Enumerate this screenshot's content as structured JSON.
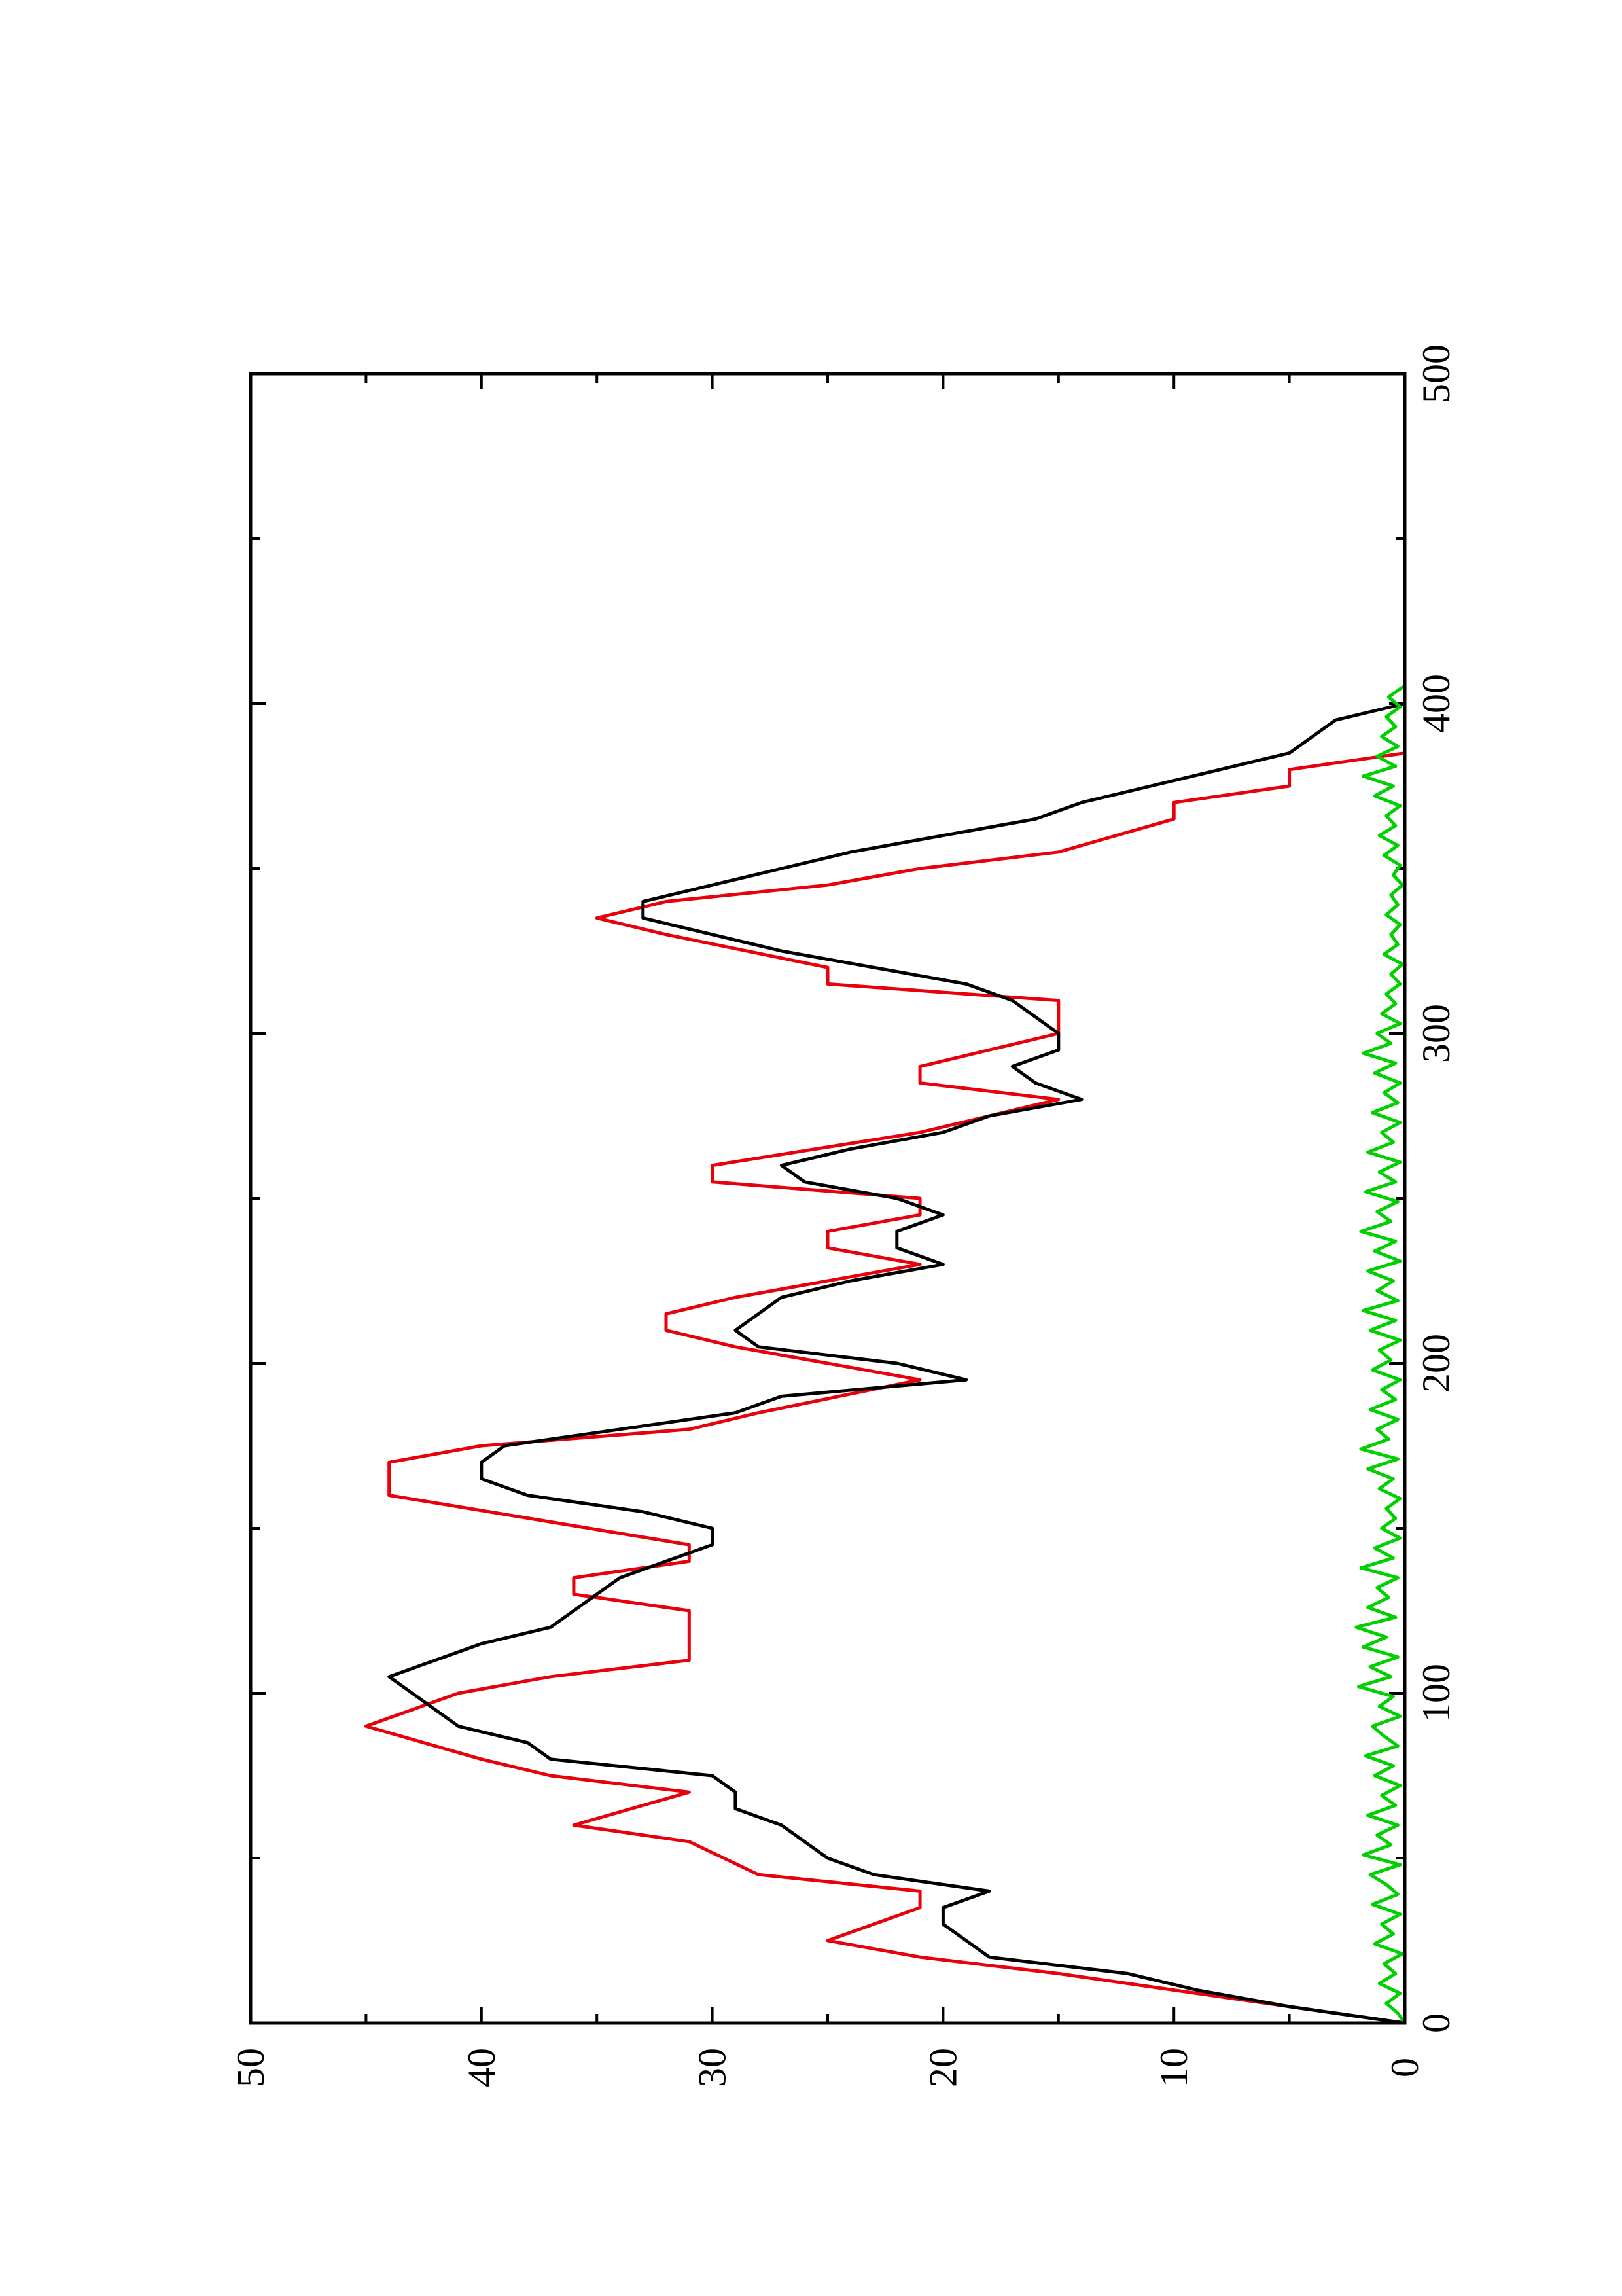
{
  "chart_data": {
    "type": "line",
    "rotated": "90 degrees counter-clockwise (x axis runs vertically, y axis runs horizontally)",
    "xlim": [
      0,
      500
    ],
    "ylim": [
      0,
      50
    ],
    "x_ticks": [
      0,
      100,
      200,
      300,
      400,
      500
    ],
    "y_ticks": [
      0,
      10,
      20,
      30,
      40,
      50
    ],
    "x_tick_labels": [
      "0",
      "100",
      "200",
      "300",
      "400",
      "500"
    ],
    "y_tick_labels": [
      "0",
      "10",
      "20",
      "30",
      "40",
      "50"
    ],
    "x_minor_ticks": [
      50,
      150,
      250,
      350,
      450
    ],
    "grid": false,
    "legend": "none",
    "series": [
      {
        "color": "#e8000b",
        "points": [
          [
            0,
            0
          ],
          [
            15,
            15
          ],
          [
            20,
            21
          ],
          [
            25,
            25
          ],
          [
            35,
            21
          ],
          [
            40,
            21
          ],
          [
            45,
            28
          ],
          [
            55,
            31
          ],
          [
            60,
            36
          ],
          [
            70,
            31
          ],
          [
            75,
            37
          ],
          [
            80,
            40
          ],
          [
            90,
            45
          ],
          [
            100,
            41
          ],
          [
            105,
            37
          ],
          [
            110,
            31
          ],
          [
            125,
            31
          ],
          [
            130,
            36
          ],
          [
            135,
            36
          ],
          [
            140,
            31
          ],
          [
            145,
            31
          ],
          [
            160,
            44
          ],
          [
            170,
            44
          ],
          [
            175,
            40
          ],
          [
            180,
            31
          ],
          [
            185,
            28
          ],
          [
            195,
            21
          ],
          [
            205,
            29
          ],
          [
            210,
            32
          ],
          [
            215,
            32
          ],
          [
            220,
            29
          ],
          [
            230,
            21
          ],
          [
            235,
            25
          ],
          [
            240,
            25
          ],
          [
            245,
            21
          ],
          [
            250,
            21
          ],
          [
            255,
            30
          ],
          [
            260,
            30
          ],
          [
            270,
            21
          ],
          [
            280,
            15
          ],
          [
            285,
            21
          ],
          [
            290,
            21
          ],
          [
            300,
            15
          ],
          [
            310,
            15
          ],
          [
            315,
            25
          ],
          [
            320,
            25
          ],
          [
            330,
            32
          ],
          [
            335,
            35
          ],
          [
            340,
            32
          ],
          [
            345,
            25
          ],
          [
            350,
            21
          ],
          [
            355,
            15
          ],
          [
            365,
            10
          ],
          [
            370,
            10
          ],
          [
            375,
            5
          ],
          [
            380,
            5
          ],
          [
            385,
            0
          ]
        ]
      },
      {
        "color": "#000000",
        "points": [
          [
            0,
            0
          ],
          [
            5,
            5
          ],
          [
            10,
            9
          ],
          [
            15,
            12
          ],
          [
            20,
            18
          ],
          [
            25,
            19
          ],
          [
            30,
            20
          ],
          [
            35,
            20
          ],
          [
            40,
            18
          ],
          [
            45,
            23
          ],
          [
            50,
            25
          ],
          [
            55,
            26
          ],
          [
            60,
            27
          ],
          [
            65,
            29
          ],
          [
            70,
            29
          ],
          [
            75,
            30
          ],
          [
            80,
            37
          ],
          [
            85,
            38
          ],
          [
            90,
            41
          ],
          [
            95,
            42
          ],
          [
            100,
            43
          ],
          [
            105,
            44
          ],
          [
            110,
            42
          ],
          [
            115,
            40
          ],
          [
            120,
            37
          ],
          [
            125,
            36
          ],
          [
            130,
            35
          ],
          [
            135,
            34
          ],
          [
            140,
            32
          ],
          [
            145,
            30
          ],
          [
            150,
            30
          ],
          [
            155,
            33
          ],
          [
            160,
            38
          ],
          [
            165,
            40
          ],
          [
            170,
            40
          ],
          [
            175,
            39
          ],
          [
            180,
            34
          ],
          [
            185,
            29
          ],
          [
            190,
            27
          ],
          [
            195,
            19
          ],
          [
            200,
            22
          ],
          [
            205,
            28
          ],
          [
            210,
            29
          ],
          [
            215,
            28
          ],
          [
            220,
            27
          ],
          [
            225,
            24
          ],
          [
            230,
            20
          ],
          [
            235,
            22
          ],
          [
            240,
            22
          ],
          [
            245,
            20
          ],
          [
            250,
            22
          ],
          [
            255,
            26
          ],
          [
            260,
            27
          ],
          [
            265,
            24
          ],
          [
            270,
            20
          ],
          [
            275,
            18
          ],
          [
            280,
            14
          ],
          [
            285,
            16
          ],
          [
            290,
            17
          ],
          [
            295,
            15
          ],
          [
            300,
            15
          ],
          [
            305,
            16
          ],
          [
            310,
            17
          ],
          [
            315,
            19
          ],
          [
            320,
            23
          ],
          [
            325,
            27
          ],
          [
            330,
            30
          ],
          [
            335,
            33
          ],
          [
            340,
            33
          ],
          [
            345,
            30
          ],
          [
            350,
            27
          ],
          [
            355,
            24
          ],
          [
            360,
            20
          ],
          [
            365,
            16
          ],
          [
            370,
            14
          ],
          [
            375,
            11
          ],
          [
            380,
            8
          ],
          [
            385,
            5
          ],
          [
            390,
            4
          ],
          [
            395,
            3
          ],
          [
            400,
            0
          ]
        ]
      },
      {
        "color": "#00d000",
        "points": [
          [
            0,
            0
          ],
          [
            3,
            0.3
          ],
          [
            6,
            0.8
          ],
          [
            9,
            0.2
          ],
          [
            12,
            1.1
          ],
          [
            15,
            0.4
          ],
          [
            18,
            0.9
          ],
          [
            21,
            0.1
          ],
          [
            24,
            1.3
          ],
          [
            27,
            0.5
          ],
          [
            30,
            1.0
          ],
          [
            33,
            0.2
          ],
          [
            36,
            1.4
          ],
          [
            39,
            0.3
          ],
          [
            42,
            0.8
          ],
          [
            45,
            1.5
          ],
          [
            48,
            0.2
          ],
          [
            51,
            1.8
          ],
          [
            54,
            0.6
          ],
          [
            57,
            1.2
          ],
          [
            60,
            0.3
          ],
          [
            63,
            1.6
          ],
          [
            66,
            0.4
          ],
          [
            69,
            1.0
          ],
          [
            72,
            0.2
          ],
          [
            75,
            1.3
          ],
          [
            78,
            0.5
          ],
          [
            81,
            1.7
          ],
          [
            84,
            0.3
          ],
          [
            87,
            0.9
          ],
          [
            90,
            1.4
          ],
          [
            93,
            0.2
          ],
          [
            96,
            1.1
          ],
          [
            99,
            0.5
          ],
          [
            102,
            2.0
          ],
          [
            105,
            0.6
          ],
          [
            108,
            1.5
          ],
          [
            111,
            0.3
          ],
          [
            114,
            1.8
          ],
          [
            117,
            0.8
          ],
          [
            120,
            2.1
          ],
          [
            123,
            0.4
          ],
          [
            126,
            1.6
          ],
          [
            129,
            0.7
          ],
          [
            132,
            1.2
          ],
          [
            135,
            0.3
          ],
          [
            138,
            1.9
          ],
          [
            141,
            0.5
          ],
          [
            144,
            1.3
          ],
          [
            147,
            0.2
          ],
          [
            150,
            1.0
          ],
          [
            153,
            0.4
          ],
          [
            156,
            0.8
          ],
          [
            159,
            0.2
          ],
          [
            162,
            1.1
          ],
          [
            165,
            0.5
          ],
          [
            168,
            1.6
          ],
          [
            171,
            0.3
          ],
          [
            174,
            1.9
          ],
          [
            177,
            0.7
          ],
          [
            180,
            1.2
          ],
          [
            183,
            0.3
          ],
          [
            186,
            1.5
          ],
          [
            189,
            0.4
          ],
          [
            192,
            1.0
          ],
          [
            195,
            0.2
          ],
          [
            198,
            1.4
          ],
          [
            201,
            0.6
          ],
          [
            204,
            1.1
          ],
          [
            207,
            0.2
          ],
          [
            210,
            1.5
          ],
          [
            213,
            0.4
          ],
          [
            216,
            1.8
          ],
          [
            219,
            0.3
          ],
          [
            222,
            1.2
          ],
          [
            225,
            0.5
          ],
          [
            228,
            1.6
          ],
          [
            231,
            0.2
          ],
          [
            234,
            1.3
          ],
          [
            237,
            0.4
          ],
          [
            240,
            1.9
          ],
          [
            243,
            0.6
          ],
          [
            246,
            1.2
          ],
          [
            249,
            0.3
          ],
          [
            252,
            1.7
          ],
          [
            255,
            0.4
          ],
          [
            258,
            1.1
          ],
          [
            261,
            0.2
          ],
          [
            264,
            1.6
          ],
          [
            267,
            0.5
          ],
          [
            270,
            1.0
          ],
          [
            273,
            0.2
          ],
          [
            276,
            1.4
          ],
          [
            279,
            0.3
          ],
          [
            282,
            0.9
          ],
          [
            285,
            0.2
          ],
          [
            288,
            1.3
          ],
          [
            291,
            0.4
          ],
          [
            294,
            1.8
          ],
          [
            297,
            0.6
          ],
          [
            300,
            1.2
          ],
          [
            303,
            0.2
          ],
          [
            306,
            1.0
          ],
          [
            309,
            0.4
          ],
          [
            312,
            0.8
          ],
          [
            315,
            0.2
          ],
          [
            318,
            0.6
          ],
          [
            321,
            0.1
          ],
          [
            324,
            0.9
          ],
          [
            327,
            0.3
          ],
          [
            330,
            0.6
          ],
          [
            333,
            0.2
          ],
          [
            336,
            0.8
          ],
          [
            339,
            0.3
          ],
          [
            342,
            0.6
          ],
          [
            345,
            0.1
          ],
          [
            348,
            0.5
          ],
          [
            351,
            0.2
          ],
          [
            354,
            0.9
          ],
          [
            357,
            0.3
          ],
          [
            360,
            1.1
          ],
          [
            363,
            0.4
          ],
          [
            366,
            0.8
          ],
          [
            369,
            0.2
          ],
          [
            372,
            1.3
          ],
          [
            375,
            0.5
          ],
          [
            378,
            1.8
          ],
          [
            381,
            0.4
          ],
          [
            384,
            1.2
          ],
          [
            387,
            0.3
          ],
          [
            390,
            1.0
          ],
          [
            393,
            0.4
          ],
          [
            396,
            0.8
          ],
          [
            399,
            0.2
          ],
          [
            402,
            0.7
          ],
          [
            405,
            0.1
          ]
        ]
      }
    ]
  }
}
